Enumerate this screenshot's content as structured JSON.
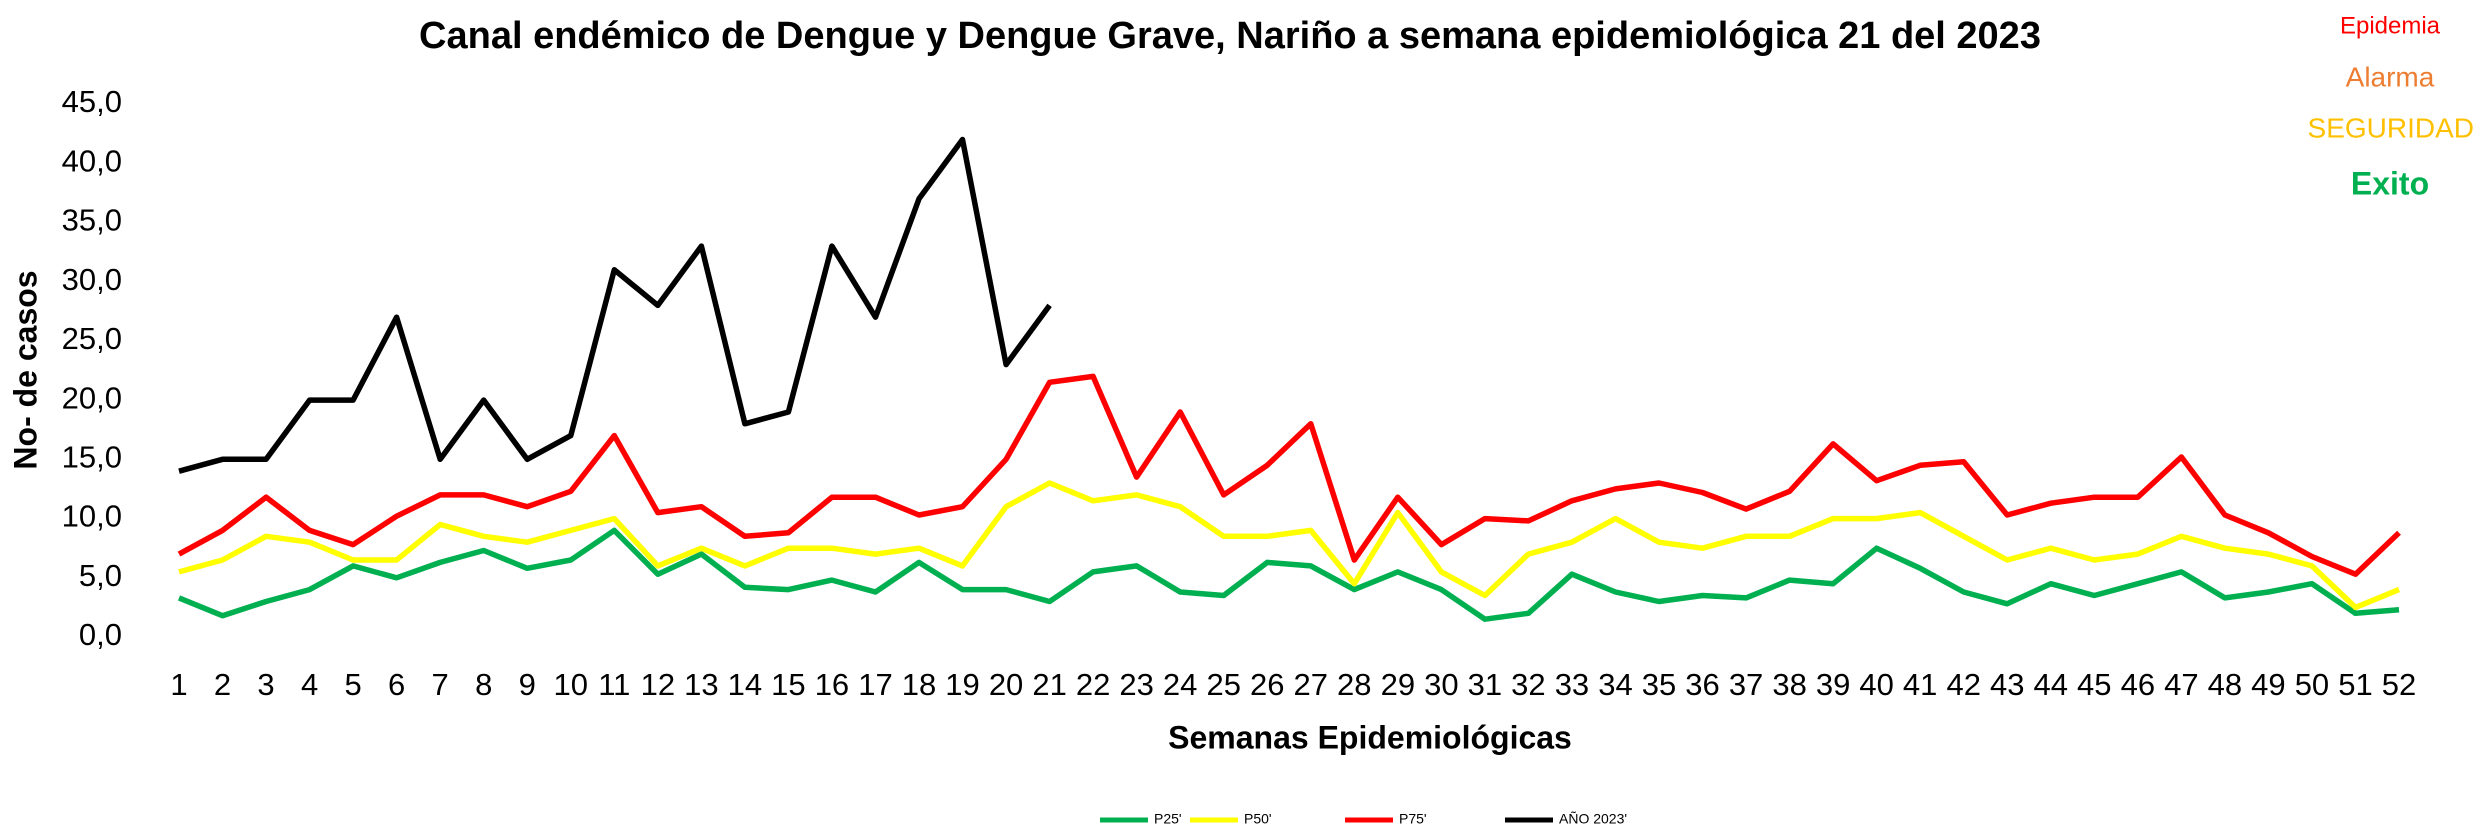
{
  "chart_data": {
    "type": "line",
    "title": "Canal endémico de Dengue y Dengue Grave, Nariño a semana epidemiológica 21 del 2023",
    "xlabel": "Semanas Epidemiológicas",
    "ylabel": "No- de casos",
    "categories": [
      "1",
      "2",
      "3",
      "4",
      "5",
      "6",
      "7",
      "8",
      "9",
      "10",
      "11",
      "12",
      "13",
      "14",
      "15",
      "16",
      "17",
      "18",
      "19",
      "20",
      "21",
      "22",
      "23",
      "24",
      "25",
      "26",
      "27",
      "28",
      "29",
      "30",
      "31",
      "32",
      "33",
      "34",
      "35",
      "36",
      "37",
      "38",
      "39",
      "40",
      "41",
      "42",
      "43",
      "44",
      "45",
      "46",
      "47",
      "48",
      "49",
      "50",
      "51",
      "52"
    ],
    "series": [
      {
        "name": "P25'",
        "color": "#00b050",
        "values": [
          3.3,
          1.8,
          3,
          4,
          6,
          5,
          6.3,
          7.3,
          5.8,
          6.5,
          9,
          5.3,
          7,
          4.2,
          4,
          4.8,
          3.8,
          6.3,
          4,
          4,
          3,
          5.5,
          6,
          3.8,
          3.5,
          6.3,
          6,
          4,
          5.5,
          4,
          1.5,
          2,
          5.3,
          3.8,
          3,
          3.5,
          3.3,
          4.8,
          4.5,
          7.5,
          5.8,
          3.8,
          2.8,
          4.5,
          3.5,
          4.5,
          5.5,
          3.3,
          3.8,
          4.5,
          2,
          2.3
        ]
      },
      {
        "name": "P50'",
        "color": "#ffff00",
        "values": [
          5.5,
          6.5,
          8.5,
          8,
          6.5,
          6.5,
          9.5,
          8.5,
          8,
          9,
          10,
          6,
          7.5,
          6,
          7.5,
          7.5,
          7,
          7.5,
          6,
          11,
          13,
          11.5,
          12,
          11,
          8.5,
          8.5,
          9,
          4.5,
          10.5,
          5.5,
          3.5,
          7,
          8,
          10,
          8,
          7.5,
          8.5,
          8.5,
          10,
          10,
          10.5,
          8.5,
          6.5,
          7.5,
          6.5,
          7,
          8.5,
          7.5,
          7,
          6,
          2.5,
          4
        ]
      },
      {
        "name": "P75'",
        "color": "#ff0000",
        "values": [
          7,
          9,
          11.8,
          9,
          7.8,
          10.2,
          12,
          12,
          11,
          12.3,
          17,
          10.5,
          11,
          8.5,
          8.8,
          11.8,
          11.8,
          10.3,
          11,
          15,
          21.5,
          22,
          13.5,
          19,
          12,
          14.5,
          18,
          6.5,
          11.8,
          7.8,
          10,
          9.8,
          11.5,
          12.5,
          13,
          12.2,
          10.8,
          12.3,
          16.3,
          13.2,
          14.5,
          14.8,
          10.3,
          11.3,
          11.8,
          11.8,
          15.2,
          10.3,
          8.8,
          6.8,
          5.3,
          8.8
        ]
      },
      {
        "name": "AÑO 2023'",
        "color": "#000000",
        "values": [
          14,
          15,
          15,
          20,
          20,
          27,
          15,
          20,
          15,
          17,
          31,
          28,
          33,
          18,
          19,
          33,
          27,
          37,
          42,
          23,
          28,
          null,
          null,
          null,
          null,
          null,
          null,
          null,
          null,
          null,
          null,
          null,
          null,
          null,
          null,
          null,
          null,
          null,
          null,
          null,
          null,
          null,
          null,
          null,
          null,
          null,
          null,
          null,
          null,
          null,
          null,
          null
        ]
      }
    ],
    "ylim": [
      0,
      45
    ],
    "yticks": [
      {
        "value": 0,
        "label": "0,0"
      },
      {
        "value": 5,
        "label": "5,0"
      },
      {
        "value": 10,
        "label": "10,0"
      },
      {
        "value": 15,
        "label": "15,0"
      },
      {
        "value": 20,
        "label": "20,0"
      },
      {
        "value": 25,
        "label": "25,0"
      },
      {
        "value": 30,
        "label": "30,0"
      },
      {
        "value": 35,
        "label": "35,0"
      },
      {
        "value": 40,
        "label": "40,0"
      },
      {
        "value": 45,
        "label": "45,0"
      }
    ],
    "grid": false,
    "legend": "bottom",
    "annotations": [
      {
        "text": "Epidemia",
        "color": "#ff0000"
      },
      {
        "text": "Alarma",
        "color": "#ed7d31"
      },
      {
        "text": "SEGURIDAD",
        "color": "#ffc000"
      },
      {
        "text": "Exito",
        "color": "#00b050"
      }
    ]
  }
}
